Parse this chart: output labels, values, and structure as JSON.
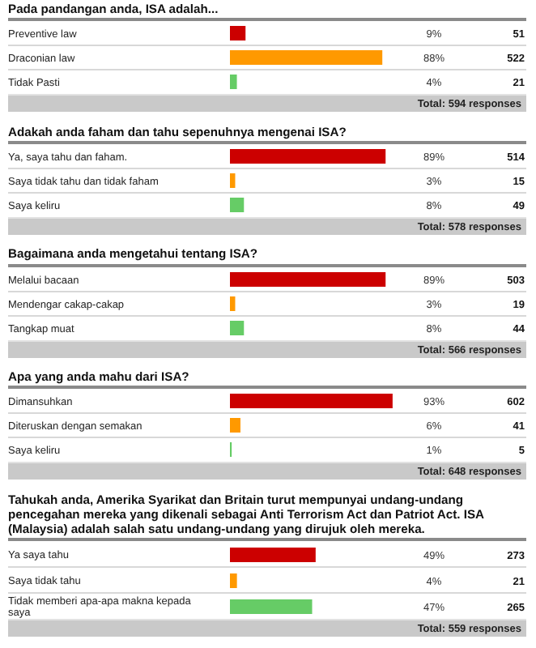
{
  "chart_data": [
    {
      "type": "bar",
      "orientation": "horizontal",
      "title": "Pada pandangan anda, ISA adalah...",
      "categories": [
        "Preventive law",
        "Draconian law",
        "Tidak Pasti"
      ],
      "values": [
        9,
        88,
        4
      ],
      "colors": [
        "#cc0000",
        "#ff9900",
        "#66cc66"
      ],
      "value_labels": [
        "9%",
        "88%",
        "4%"
      ],
      "tick_labels": "y",
      "grid": "y",
      "annotations": [
        "51",
        "522",
        "21",
        "Total: 594 responses"
      ]
    },
    {
      "type": "bar",
      "orientation": "horizontal",
      "title": "Adakah anda faham dan tahu sepenuhnya mengenai ISA?",
      "categories": [
        "Ya, saya tahu dan faham.",
        "Saya tidak tahu dan tidak faham",
        "Saya keliru"
      ],
      "values": [
        89,
        3,
        8
      ],
      "colors": [
        "#cc0000",
        "#ff9900",
        "#66cc66"
      ],
      "value_labels": [
        "89%",
        "3%",
        "8%"
      ],
      "tick_labels": "y",
      "grid": "y",
      "annotations": [
        "514",
        "15",
        "49",
        "Total: 578 responses"
      ]
    },
    {
      "type": "bar",
      "orientation": "horizontal",
      "title": "Bagaimana anda mengetahui tentang ISA?",
      "categories": [
        "Melalui bacaan",
        "Mendengar cakap-cakap",
        "Tangkap muat"
      ],
      "values": [
        89,
        3,
        8
      ],
      "colors": [
        "#cc0000",
        "#ff9900",
        "#66cc66"
      ],
      "value_labels": [
        "89%",
        "3%",
        "8%"
      ],
      "tick_labels": "y",
      "grid": "y",
      "annotations": [
        "503",
        "19",
        "44",
        "Total: 566 responses"
      ]
    },
    {
      "type": "bar",
      "orientation": "horizontal",
      "title": "Apa yang anda mahu dari ISA?",
      "categories": [
        "Dimansuhkan",
        "Diteruskan dengan semakan",
        "Saya keliru"
      ],
      "values": [
        93,
        6,
        1
      ],
      "colors": [
        "#cc0000",
        "#ff9900",
        "#66cc66"
      ],
      "value_labels": [
        "93%",
        "6%",
        "1%"
      ],
      "tick_labels": "y",
      "grid": "y",
      "annotations": [
        "602",
        "41",
        "5",
        "Total: 648 responses"
      ]
    },
    {
      "type": "bar",
      "orientation": "horizontal",
      "title": "Tahukah anda, Amerika Syarikat dan Britain turut mempunyai undang-undang pencegahan mereka yang dikenali sebagai Anti Terrorism Act dan Patriot Act. ISA (Malaysia) adalah salah satu undang-undang yang dirujuk oleh mereka.",
      "categories": [
        "Ya saya tahu",
        "Saya tidak tahu",
        "Tidak memberi apa-apa makna kepada saya"
      ],
      "values": [
        49,
        4,
        47
      ],
      "colors": [
        "#cc0000",
        "#ff9900",
        "#66cc66"
      ],
      "value_labels": [
        "49%",
        "4%",
        "47%"
      ],
      "tick_labels": "y",
      "grid": "y",
      "annotations": [
        "273",
        "21",
        "265",
        "Total: 559 responses"
      ]
    }
  ]
}
